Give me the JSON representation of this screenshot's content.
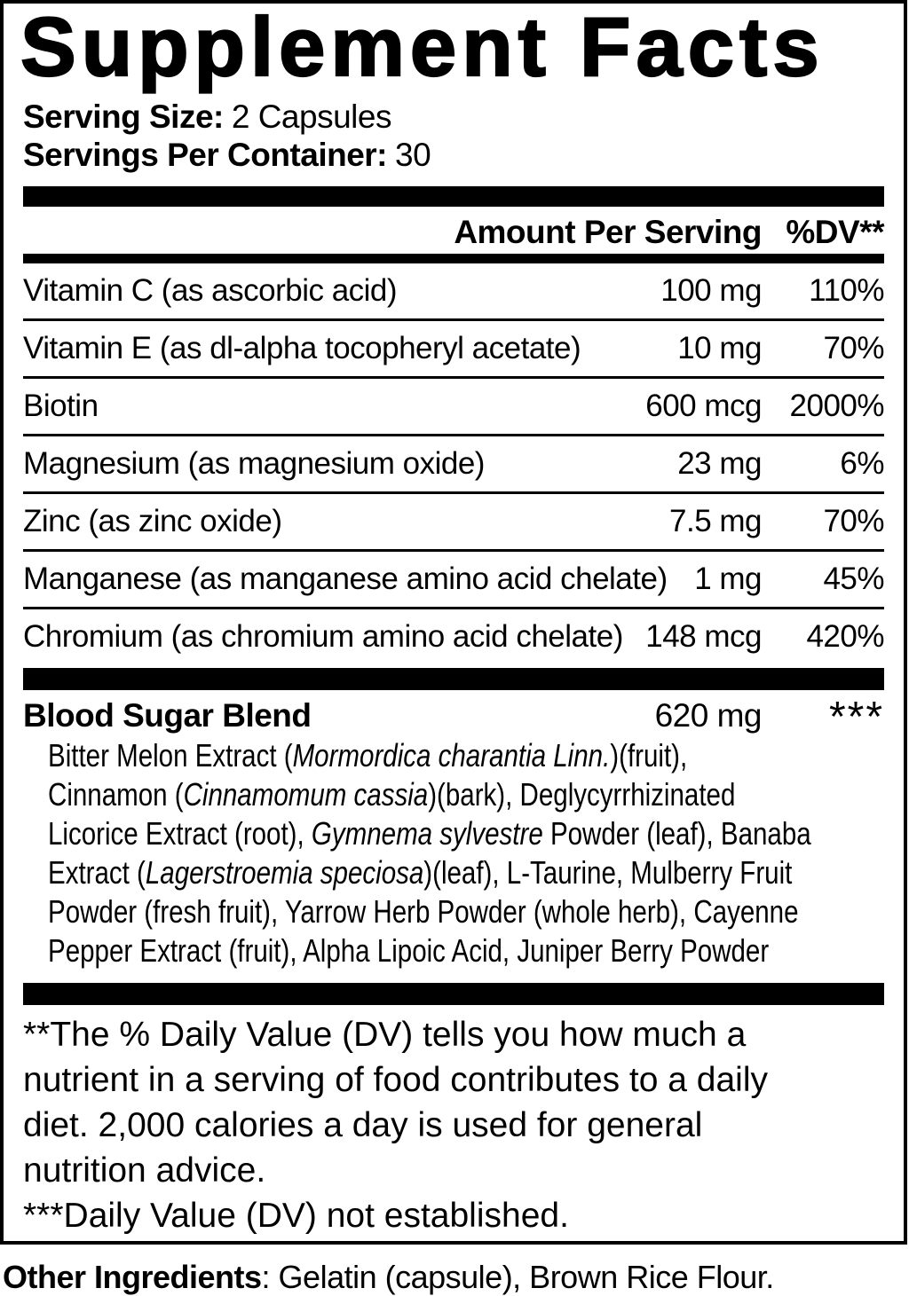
{
  "colors": {
    "ink": "#000000",
    "background": "#ffffff"
  },
  "label": {
    "title": "Supplement Facts",
    "serving_size": {
      "label": "Serving Size:",
      "value": "2 Capsules"
    },
    "servings_per_container": {
      "label": "Servings Per Container:",
      "value": "30"
    },
    "header": {
      "amount": "Amount Per Serving",
      "dv": "%DV**"
    },
    "nutrients": [
      {
        "name": "Vitamin C (as ascorbic acid)",
        "amount": "100 mg",
        "dv": "110%"
      },
      {
        "name": "Vitamin E (as dl-alpha tocopheryl acetate)",
        "amount": "10 mg",
        "dv": "70%"
      },
      {
        "name": "Biotin",
        "amount": "600 mcg",
        "dv": "2000%"
      },
      {
        "name": "Magnesium (as magnesium oxide)",
        "amount": "23 mg",
        "dv": "6%"
      },
      {
        "name": "Zinc (as zinc oxide)",
        "amount": "7.5 mg",
        "dv": "70%"
      },
      {
        "name": "Manganese (as manganese amino acid chelate)",
        "amount": "1 mg",
        "dv": "45%"
      },
      {
        "name": "Chromium (as chromium amino acid chelate)",
        "amount": "148 mcg",
        "dv": "420%"
      }
    ],
    "blend": {
      "name": "Blood Sugar Blend",
      "amount": "620 mg",
      "dv": "***",
      "ingredient_lines": [
        [
          {
            "t": "Bitter Melon Extract (",
            "i": false
          },
          {
            "t": "Mormordica charantia Linn.",
            "i": true
          },
          {
            "t": ")(fruit),",
            "i": false
          }
        ],
        [
          {
            "t": "Cinnamon (",
            "i": false
          },
          {
            "t": "Cinnamomum cassia",
            "i": true
          },
          {
            "t": ")(bark), Deglycyrrhizinated",
            "i": false
          }
        ],
        [
          {
            "t": "Licorice Extract (root), ",
            "i": false
          },
          {
            "t": "Gymnema sylvestre",
            "i": true
          },
          {
            "t": " Powder (leaf), Banaba",
            "i": false
          }
        ],
        [
          {
            "t": "Extract (",
            "i": false
          },
          {
            "t": "Lagerstroemia speciosa",
            "i": true
          },
          {
            "t": ")(leaf), L-Taurine, Mulberry Fruit",
            "i": false
          }
        ],
        [
          {
            "t": "Powder (fresh fruit), Yarrow Herb Powder (whole herb), Cayenne",
            "i": false
          }
        ],
        [
          {
            "t": "Pepper Extract (fruit), Alpha Lipoic Acid, Juniper Berry Powder",
            "i": false
          }
        ]
      ]
    },
    "footnotes": {
      "dv_note_lines": [
        "**The % Daily Value (DV) tells you how much a",
        "nutrient in a serving of food contributes to a daily",
        "diet. 2,000 calories a day is used for general",
        "nutrition advice."
      ],
      "not_established": "***Daily Value (DV) not established."
    },
    "other_ingredients": {
      "label": "Other Ingredients",
      "value": ": Gelatin (capsule), Brown Rice Flour."
    }
  }
}
